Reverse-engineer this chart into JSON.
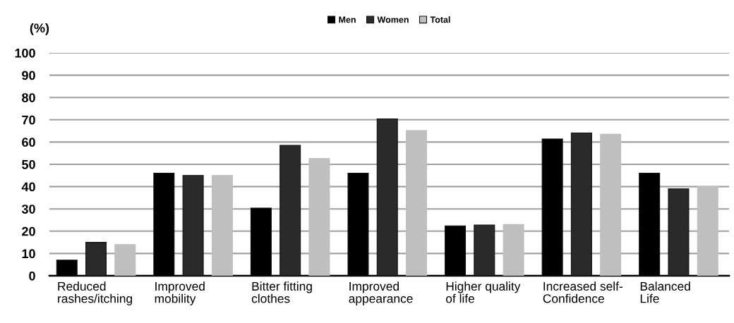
{
  "chart_data": {
    "type": "bar",
    "ylabel": "(%)",
    "categories": [
      "Reduced\nrashes/itching",
      "Improved\nmobility",
      "Bitter fitting\nclothes",
      "Improved\nappearance",
      "Higher quality\nof life",
      "Increased self-\nConfidence",
      "Balanced\nLife"
    ],
    "series": [
      {
        "name": "Men",
        "color": "#000000",
        "values": [
          7,
          46,
          30.4,
          46,
          22.4,
          61.4,
          46
        ]
      },
      {
        "name": "Women",
        "color": "#2a2a2a",
        "values": [
          15,
          45,
          58.5,
          70.4,
          22.8,
          64.1,
          39
        ]
      },
      {
        "name": "Total",
        "color": "#bfbfbf",
        "values": [
          14,
          45,
          52.6,
          65.2,
          23,
          63.5,
          40
        ]
      }
    ],
    "ylim": [
      0,
      100
    ],
    "yticks": [
      0,
      10,
      20,
      30,
      40,
      50,
      60,
      70,
      80,
      90,
      100
    ],
    "grid": "y",
    "legend": "top"
  }
}
